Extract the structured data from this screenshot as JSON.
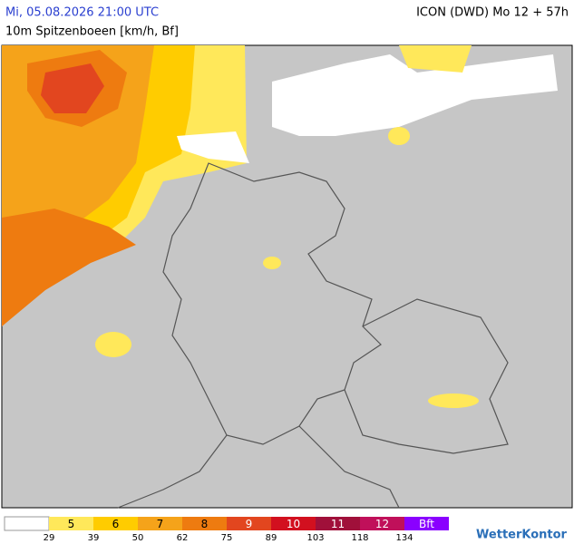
{
  "header": {
    "datetime": "Mi, 05.08.2026 21:00 UTC",
    "model": "ICON (DWD) Mo 12 + 57h",
    "parameter": "10m Spitzenboeen [km/h, Bf]"
  },
  "legend": {
    "colors": [
      "#ffffff",
      "#ffe85a",
      "#ffcc00",
      "#f5a31a",
      "#ee7b10",
      "#e2461f",
      "#d2101f",
      "#a0103a",
      "#c0105a",
      "#8a00ff"
    ],
    "labels": [
      "5",
      "6",
      "7",
      "8",
      "9",
      "10",
      "11",
      "12",
      "Bft"
    ],
    "thresholds": [
      29,
      39,
      50,
      62,
      75,
      89,
      103,
      118,
      134
    ]
  },
  "brand": "WetterKontor"
}
